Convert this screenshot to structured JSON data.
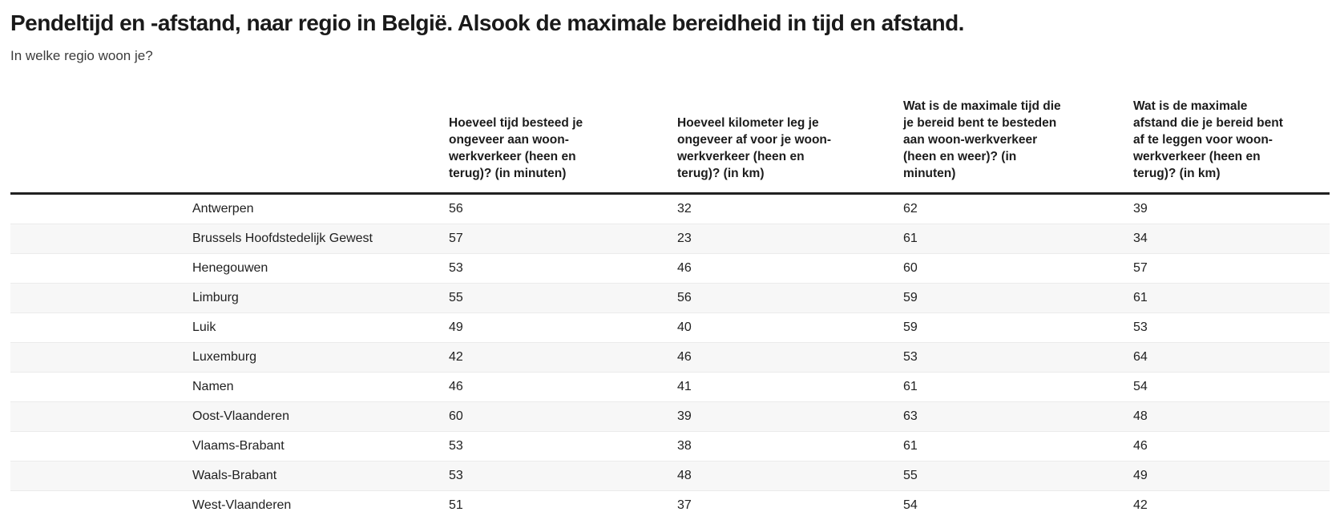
{
  "chart_data": {
    "type": "table",
    "title": "Pendeltijd en -afstand, naar regio in België. Alsook de maximale bereidheid in tijd en afstand.",
    "subtitle": "In welke regio woon je?",
    "columns": [
      "Hoeveel tijd besteed je\nongeveer aan woon-\nwerkverkeer (heen en\nterug)? (in minuten)",
      "Hoeveel kilometer leg je\nongeveer af voor je woon-\nwerkverkeer (heen en\nterug)? (in km)",
      "Wat is de maximale tijd die\nje bereid bent te besteden\naan woon-werkverkeer\n(heen en weer)? (in\nminuten)",
      "Wat is de maximale\nafstand die je bereid bent\naf te leggen voor woon-\nwerkverkeer (heen en\nterug)? (in km)"
    ],
    "rows": [
      {
        "region": "Antwerpen",
        "values": [
          56,
          32,
          62,
          39
        ]
      },
      {
        "region": "Brussels Hoofdstedelijk Gewest",
        "values": [
          57,
          23,
          61,
          34
        ]
      },
      {
        "region": "Henegouwen",
        "values": [
          53,
          46,
          60,
          57
        ]
      },
      {
        "region": "Limburg",
        "values": [
          55,
          56,
          59,
          61
        ]
      },
      {
        "region": "Luik",
        "values": [
          49,
          40,
          59,
          53
        ]
      },
      {
        "region": "Luxemburg",
        "values": [
          42,
          46,
          53,
          64
        ]
      },
      {
        "region": "Namen",
        "values": [
          46,
          41,
          61,
          54
        ]
      },
      {
        "region": "Oost-Vlaanderen",
        "values": [
          60,
          39,
          63,
          48
        ]
      },
      {
        "region": "Vlaams-Brabant",
        "values": [
          53,
          38,
          61,
          46
        ]
      },
      {
        "region": "Waals-Brabant",
        "values": [
          53,
          48,
          55,
          49
        ]
      },
      {
        "region": "West-Vlaanderen",
        "values": [
          51,
          37,
          54,
          42
        ]
      }
    ],
    "layout": {
      "legend": "none",
      "grid": "row-stripes"
    },
    "colors": {
      "header_rule": "#212121",
      "row_stripe": "#f7f7f7",
      "row_divider": "#ebebeb",
      "text": "#212121"
    }
  }
}
